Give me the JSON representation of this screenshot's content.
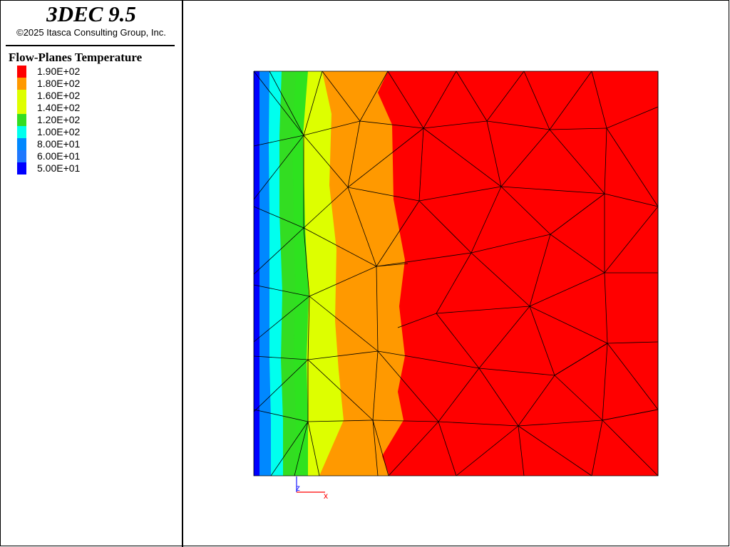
{
  "header": {
    "app_title": "3DEC 9.5",
    "copyright": "©2025 Itasca Consulting Group, Inc."
  },
  "legend": {
    "title": "Flow-Planes Temperature",
    "items": [
      {
        "label": "1.90E+02",
        "color": "#ff0000"
      },
      {
        "label": "1.80E+02",
        "color": "#ff9900"
      },
      {
        "label": "1.60E+02",
        "color": "#ddff00"
      },
      {
        "label": "1.40E+02",
        "color": "#dfff00"
      },
      {
        "label": "1.20E+02",
        "color": "#33dd22"
      },
      {
        "label": "1.00E+02",
        "color": "#00ffee"
      },
      {
        "label": "8.00E+01",
        "color": "#0088ff"
      },
      {
        "label": "6.00E+01",
        "color": "#1f78ff"
      },
      {
        "label": "5.00E+01",
        "color": "#0000ff"
      }
    ]
  },
  "axes": {
    "z_label": "z",
    "x_label": "x",
    "z_color": "#1a1aff",
    "x_color": "#ff0000"
  }
}
